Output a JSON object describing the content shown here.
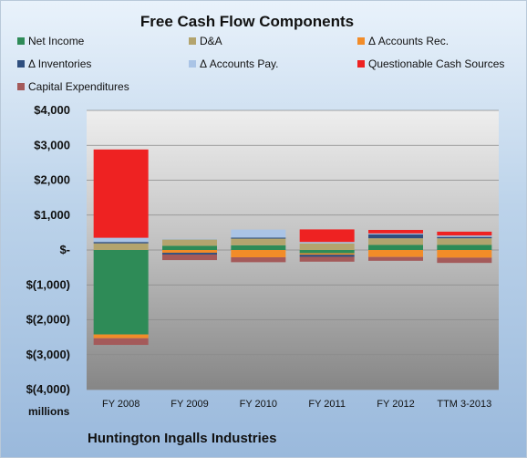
{
  "chart_data": {
    "type": "bar",
    "stacked": true,
    "title": "Free Cash Flow Components",
    "units_label": "millions",
    "company": "Huntington Ingalls Industries",
    "categories": [
      "FY 2008",
      "FY 2009",
      "FY 2010",
      "FY 2011",
      "FY 2012",
      "TTM 3-2013"
    ],
    "ylim": [
      -4000,
      4000
    ],
    "yticks": [
      {
        "value": 4000,
        "label": "$4,000"
      },
      {
        "value": 3000,
        "label": "$3,000"
      },
      {
        "value": 2000,
        "label": "$2,000"
      },
      {
        "value": 1000,
        "label": "$1,000"
      },
      {
        "value": 0,
        "label": "$-"
      },
      {
        "value": -1000,
        "label": "$(1,000)"
      },
      {
        "value": -2000,
        "label": "$(2,000)"
      },
      {
        "value": -3000,
        "label": "$(3,000)"
      },
      {
        "value": -4000,
        "label": "$(4,000)"
      }
    ],
    "legend_position": "top",
    "series": [
      {
        "name": "Net Income",
        "color": "#2e8b57",
        "values": [
          -2420,
          120,
          135,
          -95,
          145,
          145
        ]
      },
      {
        "name": "D&A",
        "color": "#b3a46e",
        "values": [
          190,
          180,
          190,
          190,
          190,
          190
        ]
      },
      {
        "name": "Δ Accounts Rec.",
        "color": "#f28c28",
        "values": [
          -110,
          -80,
          -210,
          -40,
          -200,
          -220
        ]
      },
      {
        "name": "Δ Inventories",
        "color": "#2f4f7f",
        "values": [
          40,
          -50,
          30,
          -60,
          110,
          40
        ]
      },
      {
        "name": "Δ Accounts Pay.",
        "color": "#aac4e6",
        "values": [
          120,
          20,
          230,
          40,
          30,
          40
        ]
      },
      {
        "name": "Questionable Cash Sources",
        "color": "#ee2222",
        "values": [
          2530,
          0,
          0,
          360,
          100,
          110
        ]
      },
      {
        "name": "Capital Expenditures",
        "color": "#a45a5a",
        "values": [
          -190,
          -160,
          -140,
          -140,
          -110,
          -150
        ]
      }
    ]
  }
}
